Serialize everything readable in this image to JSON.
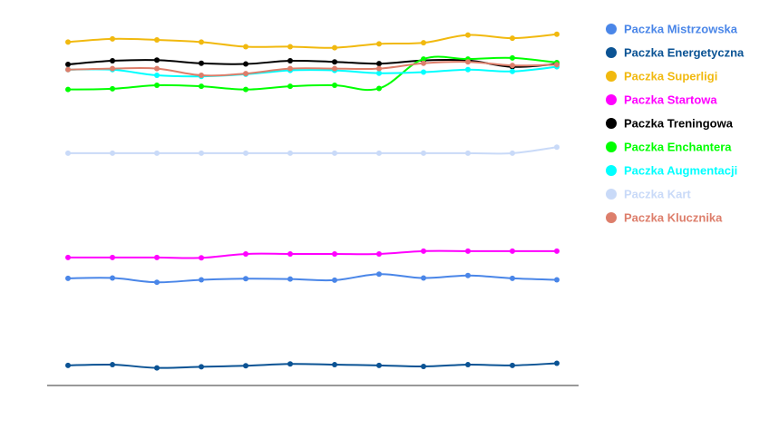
{
  "chart_data": {
    "type": "line",
    "title": "",
    "xlabel": "",
    "ylabel": "",
    "grid": false,
    "legend_position": "right",
    "x": [
      1,
      2,
      3,
      4,
      5,
      6,
      7,
      8,
      9,
      10,
      11,
      12
    ],
    "ylim": [
      0,
      100
    ],
    "series": [
      {
        "name": "Paczka Mistrzowska",
        "color": "#4a86e8",
        "values": [
          29.0,
          29.1,
          27.9,
          28.6,
          28.9,
          28.8,
          28.5,
          30.2,
          29.1,
          29.8,
          29.0,
          28.6
        ]
      },
      {
        "name": "Paczka Energetyczna",
        "color": "#0b5394",
        "values": [
          4.4,
          4.6,
          3.7,
          4.0,
          4.3,
          4.8,
          4.6,
          4.4,
          4.1,
          4.6,
          4.4,
          5.0
        ]
      },
      {
        "name": "Paczka Superligi",
        "color": "#f1b90f",
        "values": [
          95.8,
          96.7,
          96.4,
          95.8,
          94.5,
          94.5,
          94.2,
          95.3,
          95.6,
          97.8,
          96.9,
          98.0
        ]
      },
      {
        "name": "Paczka Startowa",
        "color": "#ff00ff",
        "values": [
          34.9,
          34.9,
          34.9,
          34.8,
          35.9,
          35.9,
          35.9,
          35.9,
          36.7,
          36.7,
          36.7,
          36.7
        ]
      },
      {
        "name": "Paczka Treningowa",
        "color": "#000000",
        "values": [
          89.5,
          90.5,
          90.7,
          89.8,
          89.6,
          90.5,
          90.2,
          89.7,
          90.6,
          90.6,
          88.8,
          89.6
        ]
      },
      {
        "name": "Paczka Enchantera",
        "color": "#00ff00",
        "values": [
          82.4,
          82.6,
          83.6,
          83.3,
          82.4,
          83.3,
          83.6,
          82.7,
          91.0,
          91.0,
          91.3,
          90.0
        ]
      },
      {
        "name": "Paczka Augmentacji",
        "color": "#00ffff",
        "values": [
          88.0,
          88.0,
          86.4,
          86.1,
          86.7,
          87.8,
          87.8,
          87.0,
          87.3,
          88.0,
          87.5,
          88.8
        ]
      },
      {
        "name": "Paczka Kart",
        "color": "#c9daf8",
        "values": [
          64.4,
          64.4,
          64.4,
          64.4,
          64.4,
          64.4,
          64.4,
          64.4,
          64.4,
          64.4,
          64.4,
          66.1
        ]
      },
      {
        "name": "Paczka Klucznika",
        "color": "#dd7e6b",
        "values": [
          88.0,
          88.3,
          88.3,
          86.4,
          86.9,
          88.3,
          88.3,
          88.3,
          89.8,
          90.2,
          89.2,
          89.4
        ]
      }
    ]
  }
}
